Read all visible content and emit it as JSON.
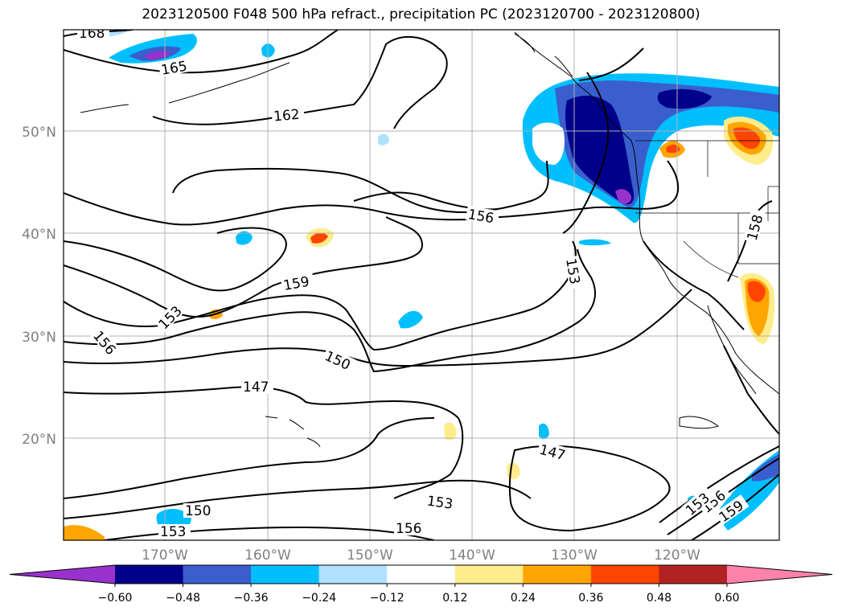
{
  "title": "2023120500 F048 500 hPa refract., precipitation PC (2023120700 - 2023120800)",
  "map": {
    "lat_labels": [
      "50°N",
      "40°N",
      "30°N",
      "20°N"
    ],
    "lon_labels": [
      "170°W",
      "160°W",
      "150°W",
      "140°W",
      "130°W",
      "120°W"
    ],
    "contour_labels": [
      "168",
      "165",
      "162",
      "156",
      "159",
      "153",
      "156",
      "150",
      "147",
      "153",
      "147",
      "150",
      "153",
      "153",
      "156",
      "156",
      "153",
      "156",
      "159",
      "158"
    ]
  },
  "colorbar": {
    "ticks": [
      "−0.60",
      "−0.48",
      "−0.36",
      "−0.24",
      "−0.12",
      "0.12",
      "0.24",
      "0.36",
      "0.48",
      "0.60"
    ],
    "colors": [
      "#9932cc",
      "#00008b",
      "#3a5fcd",
      "#00bfff",
      "#b0e2ff",
      "#ffffff",
      "#ffec8b",
      "#ffa500",
      "#ff4500",
      "#b22222",
      "#ff82ab"
    ]
  }
}
